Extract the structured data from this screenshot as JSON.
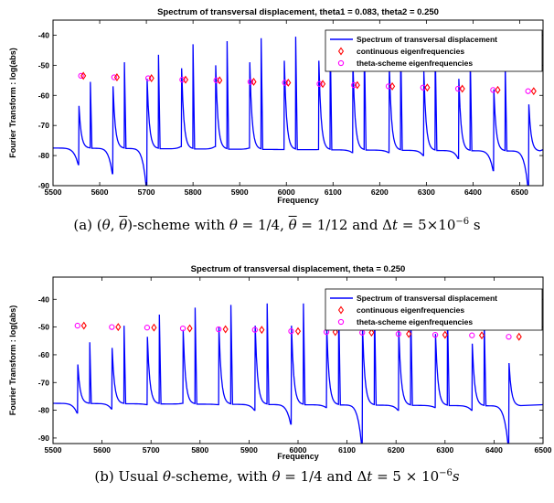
{
  "chart_data": [
    {
      "type": "line",
      "title": "Spectrum of transversal displacement, theta1 = 0.083, theta2 = 0.250",
      "xlabel": "Frequency",
      "ylabel": "Fourier Transform : log(abs)",
      "xlim": [
        5500,
        6550
      ],
      "ylim": [
        -90,
        -35
      ],
      "xticks": [
        5500,
        5600,
        5700,
        5800,
        5900,
        6000,
        6100,
        6200,
        6300,
        6400,
        6500
      ],
      "yticks": [
        -90,
        -80,
        -70,
        -60,
        -50,
        -40
      ],
      "grid": false,
      "legend_position": "top-right",
      "series": [
        {
          "name": "Spectrum of transversal displacement",
          "color": "#0000ff",
          "peaks": [
            {
              "x": 5555,
              "low": -83,
              "high": -63.5
            },
            {
              "x": 5628,
              "low": -86,
              "high": -57
            },
            {
              "x": 5701,
              "low": -91,
              "high": -54.5
            },
            {
              "x": 5775,
              "low": -77,
              "high": -51
            },
            {
              "x": 5848,
              "low": -77,
              "high": -50
            },
            {
              "x": 5921,
              "low": -77.5,
              "high": -49
            },
            {
              "x": 5995,
              "low": -78,
              "high": -48.5
            },
            {
              "x": 6069,
              "low": -78,
              "high": -48.5
            },
            {
              "x": 6142,
              "low": -79,
              "high": -49
            },
            {
              "x": 6220,
              "low": -79,
              "high": -50
            },
            {
              "x": 6294,
              "low": -80,
              "high": -52
            },
            {
              "x": 6369,
              "low": -81,
              "high": -54.5
            },
            {
              "x": 6444,
              "low": -85,
              "high": -58
            },
            {
              "x": 6519,
              "low": -91,
              "high": -63
            }
          ]
        },
        {
          "name": "continuous eigenfrequencies",
          "color": "#ff0000",
          "marker": "diamond",
          "x": [
            5565,
            5637,
            5711,
            5784,
            5857,
            5930,
            6004,
            6078,
            6152,
            6227,
            6302,
            6377,
            6453,
            6530
          ],
          "y": [
            -53.5,
            -54,
            -54.3,
            -54.8,
            -55,
            -55.5,
            -55.8,
            -56.2,
            -56.6,
            -57,
            -57.4,
            -57.8,
            -58.2,
            -58.6
          ]
        },
        {
          "name": "theta-scheme eigenfrequencies",
          "color": "#ff00ff",
          "marker": "circle",
          "x": [
            5560,
            5631,
            5704,
            5777,
            5850,
            5923,
            5997,
            6071,
            6145,
            6219,
            6293,
            6368,
            6443,
            6518
          ],
          "y": [
            -53.5,
            -54,
            -54.3,
            -54.8,
            -55,
            -55.5,
            -55.8,
            -56.2,
            -56.6,
            -57,
            -57.4,
            -57.8,
            -58.2,
            -58.6
          ]
        }
      ],
      "caption_parts": [
        "(a) (",
        "θ",
        ", ",
        "θ",
        ")-scheme with ",
        "θ",
        " = 1/4, ",
        "θ",
        " = 1/12 and Δ",
        "t",
        " = 5×10",
        "−6",
        " s"
      ]
    },
    {
      "type": "line",
      "title": "Spectrum of transversal displacement, theta = 0.250",
      "xlabel": "Frequency",
      "ylabel": "Fourier Transform : log(abs)",
      "xlim": [
        5500,
        6500
      ],
      "ylim": [
        -92,
        -32
      ],
      "xticks": [
        5500,
        5600,
        5700,
        5800,
        5900,
        6000,
        6100,
        6200,
        6300,
        6400,
        6500
      ],
      "yticks": [
        -90,
        -80,
        -70,
        -60,
        -50,
        -40
      ],
      "grid": false,
      "legend_position": "top-right",
      "series": [
        {
          "name": "Spectrum of transversal displacement",
          "color": "#0000ff",
          "peaks": [
            {
              "x": 5550,
              "low": -81,
              "high": -63.5
            },
            {
              "x": 5620,
              "low": -79.5,
              "high": -57.5
            },
            {
              "x": 5692,
              "low": -78,
              "high": -53.5
            },
            {
              "x": 5765,
              "low": -77.5,
              "high": -51
            },
            {
              "x": 5838,
              "low": -78,
              "high": -50
            },
            {
              "x": 5912,
              "low": -80,
              "high": -49.5
            },
            {
              "x": 5986,
              "low": -85,
              "high": -49.5
            },
            {
              "x": 6058,
              "low": -79,
              "high": -50
            },
            {
              "x": 6131,
              "low": -93,
              "high": -50
            },
            {
              "x": 6205,
              "low": -80,
              "high": -51
            },
            {
              "x": 6280,
              "low": -79,
              "high": -52.5
            },
            {
              "x": 6355,
              "low": -80,
              "high": -56
            },
            {
              "x": 6430,
              "low": -93,
              "high": -63
            }
          ]
        },
        {
          "name": "continuous eigenfrequencies",
          "color": "#ff0000",
          "marker": "diamond",
          "x": [
            5563,
            5633,
            5706,
            5779,
            5852,
            5926,
            6000,
            6076,
            6150,
            6226,
            6300,
            6375,
            6451
          ],
          "y": [
            -49.5,
            -50,
            -50.2,
            -50.5,
            -50.8,
            -51,
            -51.5,
            -51.8,
            -52,
            -52.5,
            -52.8,
            -53,
            -53.5
          ]
        },
        {
          "name": "theta-scheme eigenfrequencies",
          "color": "#ff00ff",
          "marker": "circle",
          "x": [
            5550,
            5620,
            5692,
            5765,
            5838,
            5912,
            5986,
            6058,
            6131,
            6205,
            6280,
            6355,
            6430
          ],
          "y": [
            -49.5,
            -50,
            -50.2,
            -50.5,
            -50.8,
            -51,
            -51.5,
            -51.8,
            -52,
            -52.5,
            -52.8,
            -53,
            -53.5
          ]
        }
      ],
      "caption_parts": [
        "(b) Usual ",
        "θ",
        "-scheme, with ",
        "θ",
        " = 1/4 and Δ",
        "t",
        " = 5 × 10",
        "−6",
        "s"
      ]
    }
  ]
}
